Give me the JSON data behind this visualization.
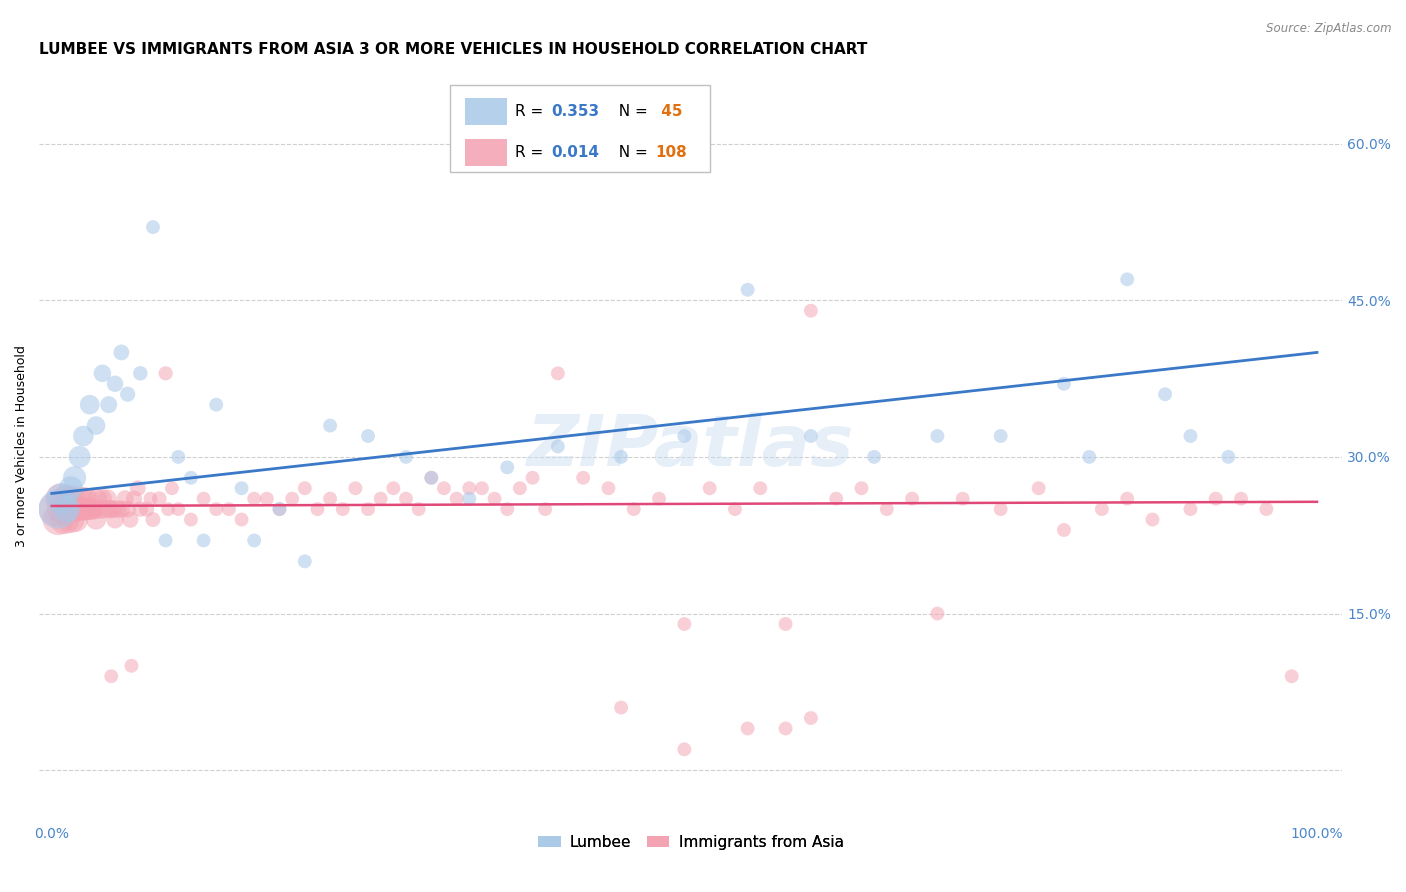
{
  "title": "LUMBEE VS IMMIGRANTS FROM ASIA 3 OR MORE VEHICLES IN HOUSEHOLD CORRELATION CHART",
  "source": "Source: ZipAtlas.com",
  "ylabel": "3 or more Vehicles in Household",
  "xlim": [
    -0.01,
    1.02
  ],
  "ylim": [
    -0.05,
    0.67
  ],
  "yticks": [
    0.0,
    0.15,
    0.3,
    0.45,
    0.6
  ],
  "ytick_labels": [
    "",
    "15.0%",
    "30.0%",
    "45.0%",
    "60.0%"
  ],
  "xticks": [
    0.0,
    0.25,
    0.5,
    0.75,
    1.0
  ],
  "xtick_labels": [
    "0.0%",
    "",
    "",
    "",
    "100.0%"
  ],
  "watermark": "ZIPatlas",
  "R_lumbee": 0.353,
  "N_lumbee": 45,
  "R_asia": 0.014,
  "N_asia": 108,
  "blue_color": "#a8c8e8",
  "pink_color": "#f4a0b0",
  "blue_line_color": "#3a78c8",
  "pink_line_color": "#e04878",
  "grid_color": "#d0d0d0",
  "background_color": "#ffffff",
  "title_fontsize": 11,
  "axis_label_fontsize": 9,
  "tick_fontsize": 10,
  "legend_fontsize": 11,
  "lumbee_x": [
    0.005,
    0.008,
    0.012,
    0.015,
    0.018,
    0.022,
    0.025,
    0.03,
    0.035,
    0.04,
    0.045,
    0.05,
    0.055,
    0.06,
    0.07,
    0.08,
    0.09,
    0.1,
    0.11,
    0.12,
    0.13,
    0.15,
    0.16,
    0.18,
    0.2,
    0.22,
    0.25,
    0.28,
    0.3,
    0.33,
    0.36,
    0.4,
    0.45,
    0.5,
    0.55,
    0.6,
    0.65,
    0.7,
    0.75,
    0.8,
    0.82,
    0.85,
    0.88,
    0.9,
    0.93
  ],
  "lumbee_y": [
    0.25,
    0.26,
    0.25,
    0.27,
    0.28,
    0.3,
    0.32,
    0.35,
    0.33,
    0.38,
    0.35,
    0.37,
    0.4,
    0.36,
    0.38,
    0.52,
    0.22,
    0.3,
    0.28,
    0.22,
    0.35,
    0.27,
    0.22,
    0.25,
    0.2,
    0.33,
    0.32,
    0.3,
    0.28,
    0.26,
    0.29,
    0.31,
    0.3,
    0.32,
    0.46,
    0.32,
    0.3,
    0.32,
    0.32,
    0.37,
    0.3,
    0.47,
    0.36,
    0.32,
    0.3
  ],
  "lumbee_sizes": [
    800,
    500,
    350,
    300,
    280,
    250,
    220,
    200,
    180,
    160,
    150,
    140,
    130,
    120,
    110,
    100,
    100,
    100,
    100,
    100,
    100,
    100,
    100,
    100,
    100,
    100,
    100,
    100,
    100,
    100,
    100,
    100,
    100,
    100,
    100,
    100,
    100,
    100,
    100,
    100,
    100,
    100,
    100,
    100,
    100
  ],
  "asia_x": [
    0.003,
    0.005,
    0.007,
    0.008,
    0.01,
    0.012,
    0.013,
    0.015,
    0.016,
    0.018,
    0.019,
    0.02,
    0.022,
    0.023,
    0.025,
    0.026,
    0.027,
    0.028,
    0.03,
    0.032,
    0.033,
    0.035,
    0.036,
    0.038,
    0.04,
    0.042,
    0.044,
    0.046,
    0.048,
    0.05,
    0.052,
    0.055,
    0.058,
    0.06,
    0.062,
    0.065,
    0.068,
    0.07,
    0.075,
    0.08,
    0.085,
    0.09,
    0.095,
    0.1,
    0.11,
    0.12,
    0.13,
    0.14,
    0.15,
    0.16,
    0.17,
    0.18,
    0.19,
    0.2,
    0.21,
    0.22,
    0.23,
    0.24,
    0.25,
    0.26,
    0.27,
    0.28,
    0.29,
    0.3,
    0.31,
    0.32,
    0.33,
    0.34,
    0.35,
    0.36,
    0.37,
    0.38,
    0.39,
    0.4,
    0.42,
    0.44,
    0.46,
    0.48,
    0.5,
    0.52,
    0.54,
    0.56,
    0.58,
    0.6,
    0.62,
    0.64,
    0.66,
    0.68,
    0.7,
    0.72,
    0.75,
    0.78,
    0.8,
    0.83,
    0.85,
    0.87,
    0.9,
    0.92,
    0.94,
    0.96,
    0.98,
    0.013,
    0.024,
    0.034,
    0.047,
    0.063,
    0.078,
    0.092
  ],
  "asia_y": [
    0.25,
    0.24,
    0.26,
    0.25,
    0.24,
    0.26,
    0.25,
    0.24,
    0.26,
    0.25,
    0.24,
    0.25,
    0.26,
    0.25,
    0.26,
    0.25,
    0.25,
    0.26,
    0.25,
    0.25,
    0.25,
    0.24,
    0.26,
    0.25,
    0.26,
    0.25,
    0.26,
    0.25,
    0.25,
    0.24,
    0.25,
    0.25,
    0.26,
    0.25,
    0.24,
    0.26,
    0.27,
    0.25,
    0.25,
    0.24,
    0.26,
    0.38,
    0.27,
    0.25,
    0.24,
    0.26,
    0.25,
    0.25,
    0.24,
    0.26,
    0.26,
    0.25,
    0.26,
    0.27,
    0.25,
    0.26,
    0.25,
    0.27,
    0.25,
    0.26,
    0.27,
    0.26,
    0.25,
    0.28,
    0.27,
    0.26,
    0.27,
    0.27,
    0.26,
    0.25,
    0.27,
    0.28,
    0.25,
    0.38,
    0.28,
    0.27,
    0.25,
    0.26,
    0.14,
    0.27,
    0.25,
    0.27,
    0.14,
    0.44,
    0.26,
    0.27,
    0.25,
    0.26,
    0.15,
    0.26,
    0.25,
    0.27,
    0.23,
    0.25,
    0.26,
    0.24,
    0.25,
    0.26,
    0.26,
    0.25,
    0.09,
    0.26,
    0.25,
    0.25,
    0.09,
    0.1,
    0.26,
    0.25
  ],
  "asia_sizes": [
    600,
    500,
    480,
    460,
    440,
    420,
    400,
    380,
    360,
    340,
    320,
    310,
    300,
    290,
    280,
    270,
    260,
    250,
    240,
    230,
    220,
    210,
    200,
    200,
    190,
    185,
    180,
    175,
    170,
    165,
    160,
    155,
    150,
    145,
    140,
    135,
    130,
    125,
    120,
    115,
    110,
    105,
    100,
    100,
    100,
    100,
    100,
    100,
    100,
    100,
    100,
    100,
    100,
    100,
    100,
    100,
    100,
    100,
    100,
    100,
    100,
    100,
    100,
    100,
    100,
    100,
    100,
    100,
    100,
    100,
    100,
    100,
    100,
    100,
    100,
    100,
    100,
    100,
    100,
    100,
    100,
    100,
    100,
    100,
    100,
    100,
    100,
    100,
    100,
    100,
    100,
    100,
    100,
    100,
    100,
    100,
    100,
    100,
    100,
    100,
    100,
    100,
    100,
    100,
    100,
    100,
    100,
    100
  ]
}
